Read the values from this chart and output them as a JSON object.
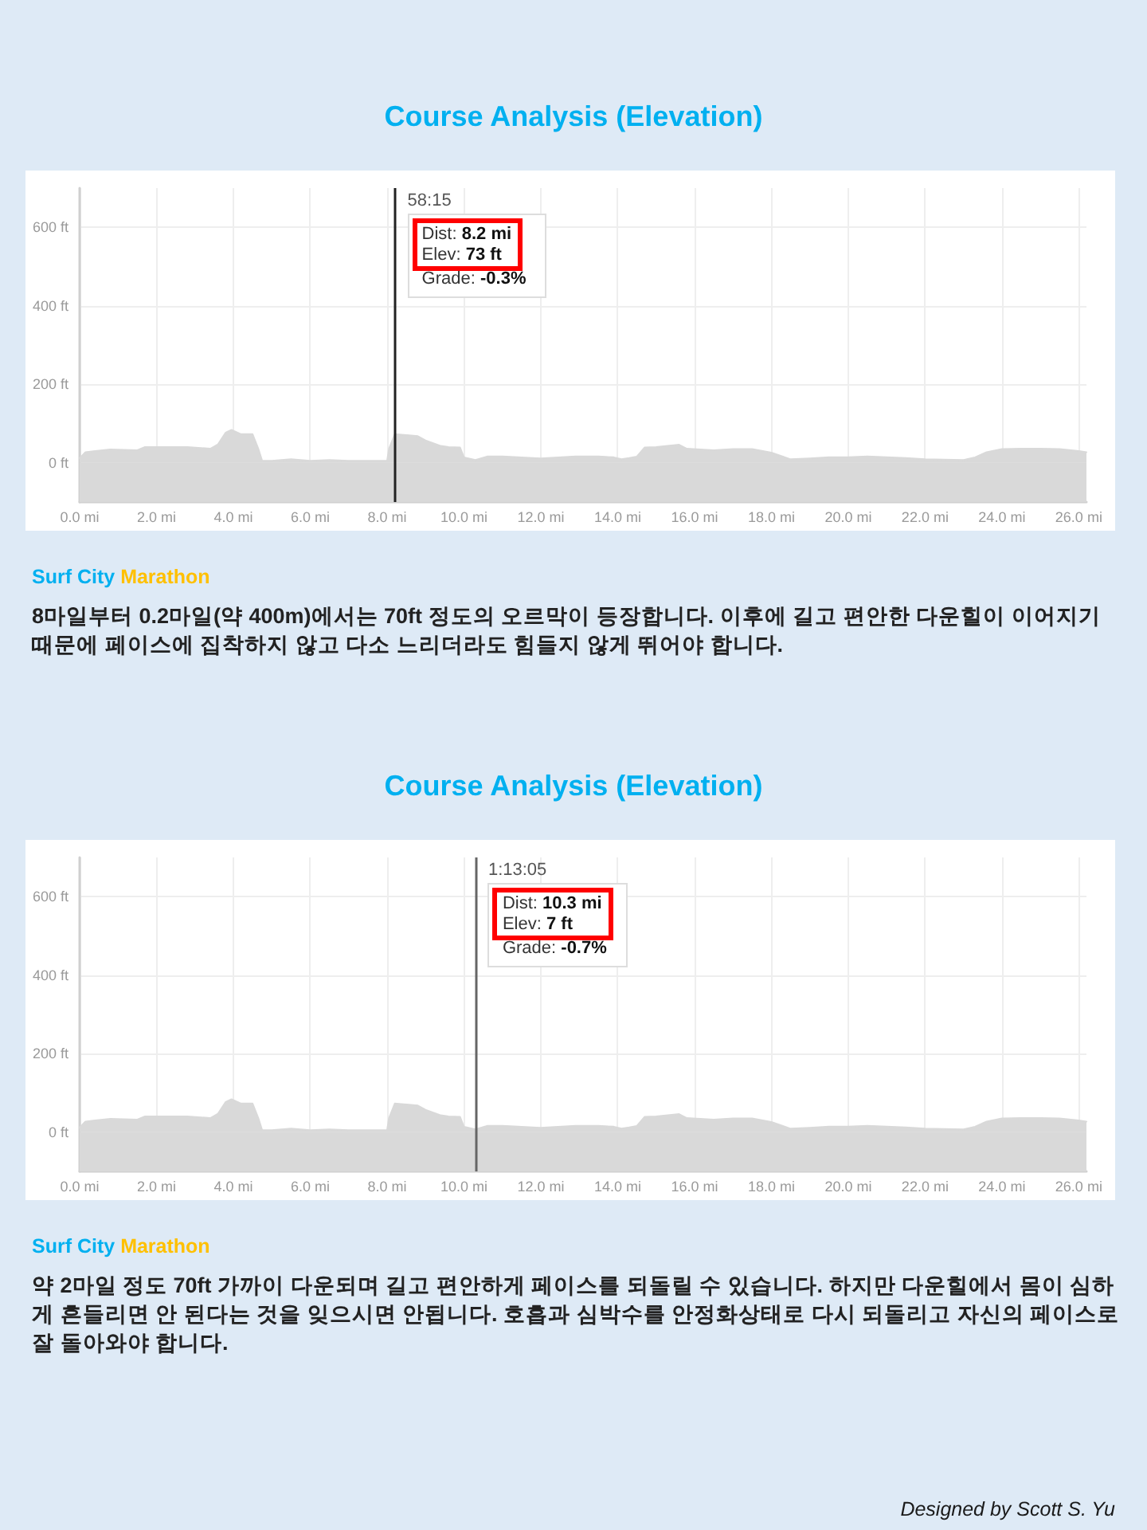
{
  "chart_data": [
    {
      "type": "area",
      "title": "Course Analysis (Elevation)",
      "x": [
        0,
        0.15,
        0.4,
        0.8,
        1.5,
        1.7,
        2.8,
        3.4,
        3.6,
        3.8,
        3.95,
        4.2,
        4.5,
        4.65,
        4.75,
        5.0,
        5.5,
        6.0,
        6.5,
        7.0,
        7.5,
        8.0,
        8.05,
        8.2,
        8.8,
        9.0,
        9.2,
        9.4,
        9.6,
        9.9,
        10.0,
        10.3,
        10.6,
        11.0,
        12.0,
        12.9,
        13.5,
        13.9,
        14.1,
        14.3,
        14.5,
        14.7,
        15.0,
        15.6,
        15.8,
        16.5,
        17.0,
        17.5,
        18.0,
        18.3,
        18.5,
        19.0,
        19.5,
        20.0,
        20.5,
        21.0,
        21.5,
        22.0,
        22.5,
        23.0,
        23.3,
        23.6,
        24.0,
        24.5,
        25.0,
        25.5,
        26.0,
        26.2
      ],
      "values": [
        12,
        27,
        30,
        34,
        32,
        40,
        40,
        36,
        47,
        77,
        84,
        73,
        73,
        36,
        5,
        5,
        9,
        5,
        7,
        5,
        5,
        5,
        36,
        73,
        68,
        57,
        50,
        43,
        40,
        39,
        14,
        7,
        16,
        16,
        11,
        16,
        16,
        14,
        9,
        12,
        16,
        39,
        40,
        46,
        36,
        32,
        35,
        35,
        26,
        16,
        9,
        11,
        14,
        14,
        16,
        14,
        12,
        9,
        8,
        7,
        14,
        27,
        35,
        36,
        36,
        35,
        30,
        27
      ],
      "color": "#d9d9d9",
      "marker": "none",
      "xlim": [
        0,
        26.2
      ],
      "xticks": [
        {
          "value": 0,
          "label": "0.0 mi"
        },
        {
          "value": 2,
          "label": "2.0 mi"
        },
        {
          "value": 4,
          "label": "4.0 mi"
        },
        {
          "value": 6,
          "label": "6.0 mi"
        },
        {
          "value": 8,
          "label": "8.0 mi"
        },
        {
          "value": 10,
          "label": "10.0 mi"
        },
        {
          "value": 12,
          "label": "12.0 mi"
        },
        {
          "value": 14,
          "label": "14.0 mi"
        },
        {
          "value": 16,
          "label": "16.0 mi"
        },
        {
          "value": 18,
          "label": "18.0 mi"
        },
        {
          "value": 20,
          "label": "20.0 mi"
        },
        {
          "value": 22,
          "label": "22.0 mi"
        },
        {
          "value": 24,
          "label": "24.0 mi"
        },
        {
          "value": 26,
          "label": "26.0 mi"
        }
      ],
      "ylim": [
        -100,
        700
      ],
      "yticks": [
        {
          "value": 0,
          "label": "0 ft"
        },
        {
          "value": 200,
          "label": "200 ft"
        },
        {
          "value": 400,
          "label": "400 ft"
        },
        {
          "value": 600,
          "label": "600 ft"
        }
      ],
      "grid": true,
      "ref_lines": [
        {
          "axis": "x",
          "value": 8.2,
          "color": "#222222"
        }
      ],
      "bands": [
        {
          "axis": "y",
          "from": -100,
          "to": 0,
          "color": "#d9d9d9"
        }
      ],
      "annotations": [
        "58:15",
        "Dist: 8.2 mi",
        "Elev: 73 ft",
        "Grade: -0.3%",
        "Surf City Marathon",
        "8마일부터 0.2마일(약 400m)에서는 70ft 정도의 오르막이 등장합니다. 이후에 길고 편안한 다운힐이 이어지기 때문에 페이스에 집착하지 않고 다소 느리더라도 힘들지 않게 뛰어야 합니다."
      ]
    },
    {
      "type": "area",
      "title": "Course Analysis (Elevation)",
      "x": [
        0,
        0.15,
        0.4,
        0.8,
        1.5,
        1.7,
        2.8,
        3.4,
        3.6,
        3.8,
        3.95,
        4.2,
        4.5,
        4.65,
        4.75,
        5.0,
        5.5,
        6.0,
        6.5,
        7.0,
        7.5,
        8.0,
        8.05,
        8.2,
        8.8,
        9.0,
        9.2,
        9.4,
        9.6,
        9.9,
        10.0,
        10.3,
        10.6,
        11.0,
        12.0,
        12.9,
        13.5,
        13.9,
        14.1,
        14.3,
        14.5,
        14.7,
        15.0,
        15.6,
        15.8,
        16.5,
        17.0,
        17.5,
        18.0,
        18.3,
        18.5,
        19.0,
        19.5,
        20.0,
        20.5,
        21.0,
        21.5,
        22.0,
        22.5,
        23.0,
        23.3,
        23.6,
        24.0,
        24.5,
        25.0,
        25.5,
        26.0,
        26.2
      ],
      "values": [
        12,
        27,
        30,
        34,
        32,
        40,
        40,
        36,
        47,
        77,
        84,
        73,
        73,
        36,
        5,
        5,
        9,
        5,
        7,
        5,
        5,
        5,
        36,
        73,
        68,
        57,
        50,
        43,
        40,
        39,
        14,
        7,
        16,
        16,
        11,
        16,
        16,
        14,
        9,
        12,
        16,
        39,
        40,
        46,
        36,
        32,
        35,
        35,
        26,
        16,
        9,
        11,
        14,
        14,
        16,
        14,
        12,
        9,
        8,
        7,
        14,
        27,
        35,
        36,
        36,
        35,
        30,
        27
      ],
      "color": "#d9d9d9",
      "marker": "none",
      "xlim": [
        0,
        26.2
      ],
      "xticks": [
        {
          "value": 0,
          "label": "0.0 mi"
        },
        {
          "value": 2,
          "label": "2.0 mi"
        },
        {
          "value": 4,
          "label": "4.0 mi"
        },
        {
          "value": 6,
          "label": "6.0 mi"
        },
        {
          "value": 8,
          "label": "8.0 mi"
        },
        {
          "value": 10,
          "label": "10.0 mi"
        },
        {
          "value": 12,
          "label": "12.0 mi"
        },
        {
          "value": 14,
          "label": "14.0 mi"
        },
        {
          "value": 16,
          "label": "16.0 mi"
        },
        {
          "value": 18,
          "label": "18.0 mi"
        },
        {
          "value": 20,
          "label": "20.0 mi"
        },
        {
          "value": 22,
          "label": "22.0 mi"
        },
        {
          "value": 24,
          "label": "24.0 mi"
        },
        {
          "value": 26,
          "label": "26.0 mi"
        }
      ],
      "ylim": [
        -100,
        700
      ],
      "yticks": [
        {
          "value": 0,
          "label": "0 ft"
        },
        {
          "value": 200,
          "label": "200 ft"
        },
        {
          "value": 400,
          "label": "400 ft"
        },
        {
          "value": 600,
          "label": "600 ft"
        }
      ],
      "grid": true,
      "ref_lines": [
        {
          "axis": "x",
          "value": 10.3,
          "color": "#666666"
        }
      ],
      "bands": [
        {
          "axis": "y",
          "from": -100,
          "to": 0,
          "color": "#d9d9d9"
        }
      ],
      "annotations": [
        "1:13:05",
        "Dist: 10.3 mi",
        "Elev: 7 ft",
        "Grade: -0.7%",
        "Surf City Marathon",
        "약 2마일 정도 70ft 가까이 다운되며 길고 편안하게 페이스를 되돌릴 수 있습니다. 하지만 다운힐에서 몸이 심하게 흔들리면 안 된다는 것을 잊으시면 안됩니다. 호흡과 심박수를 안정화상태로 다시 되돌리고 자신의 페이스로 잘 돌아와야 합니다.",
        "Designed by Scott S. Yu"
      ]
    }
  ]
}
